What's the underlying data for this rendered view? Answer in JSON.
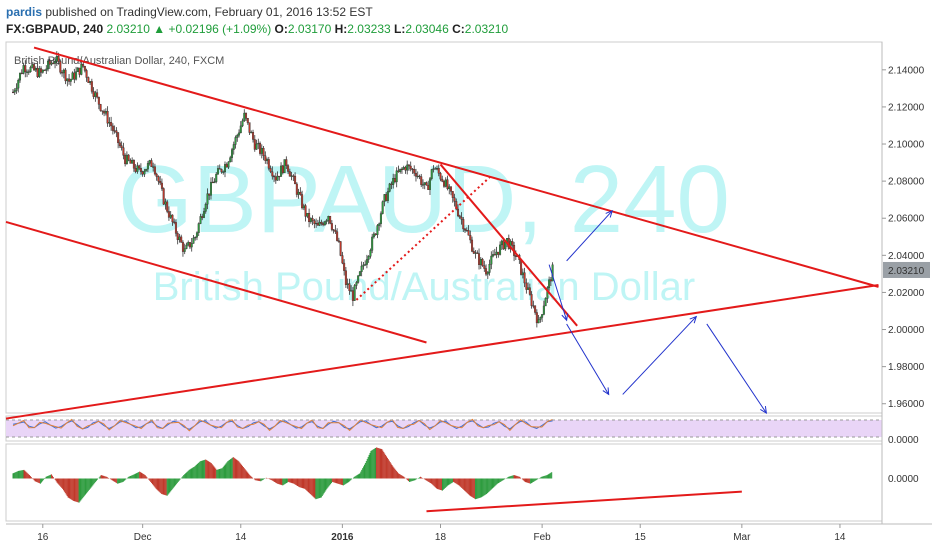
{
  "header": {
    "author": "pardis",
    "published_text": "published on TradingView.com, February 01, 2016 13:52 EST",
    "symbol": "FX:GBPAUD, 240",
    "last": "2.03210",
    "change": "+0.02196 (+1.09%)",
    "o_label": "O:",
    "o_value": "2.03170",
    "h_label": "H:",
    "h_value": "2.03233",
    "l_label": "L:",
    "l_value": "2.03046",
    "c_label": "C:",
    "c_value": "2.03210"
  },
  "colors": {
    "up": "#2e9c3f",
    "down": "#c0392b",
    "trendline": "#e31a1a",
    "projection": "#2233cc",
    "watermark": "#bff5f5",
    "price_tag_bg": "#9aa0a6",
    "osc_band": "#e9d5f7"
  },
  "chart_data": [
    {
      "type": "candlestick",
      "title": "British Pound/Australian Dollar, 240, FXCM",
      "watermark_line1": "GBPAUD, 240",
      "watermark_line2": "British Pound/Australian Dollar",
      "y_ticks": [
        "2.14000",
        "2.12000",
        "2.10000",
        "2.08000",
        "2.06000",
        "2.04000",
        "2.02000",
        "2.00000",
        "1.98000",
        "1.96000"
      ],
      "y_tick_values": [
        2.14,
        2.12,
        2.1,
        2.08,
        2.06,
        2.04,
        2.02,
        2.0,
        1.98,
        1.96
      ],
      "ylim": [
        1.955,
        2.155
      ],
      "last_price_label": "2.03210",
      "last_price": 2.0321,
      "x_ticks": [
        "16",
        "Dec",
        "14",
        "2016",
        "18",
        "Feb",
        "15",
        "Mar",
        "14"
      ],
      "x_tick_values": [
        0.5,
        29,
        57,
        86,
        114,
        143,
        171,
        200,
        228
      ],
      "xlim": [
        -10,
        240
      ],
      "approx_close_path": [
        [
          -8,
          2.128
        ],
        [
          -5,
          2.142
        ],
        [
          0,
          2.138
        ],
        [
          4,
          2.146
        ],
        [
          8,
          2.134
        ],
        [
          12,
          2.142
        ],
        [
          16,
          2.124
        ],
        [
          20,
          2.11
        ],
        [
          24,
          2.092
        ],
        [
          28,
          2.085
        ],
        [
          32,
          2.09
        ],
        [
          35,
          2.07
        ],
        [
          38,
          2.055
        ],
        [
          41,
          2.042
        ],
        [
          44,
          2.05
        ],
        [
          47,
          2.07
        ],
        [
          50,
          2.083
        ],
        [
          53,
          2.09
        ],
        [
          56,
          2.105
        ],
        [
          58,
          2.115
        ],
        [
          61,
          2.1
        ],
        [
          64,
          2.093
        ],
        [
          67,
          2.082
        ],
        [
          70,
          2.09
        ],
        [
          73,
          2.075
        ],
        [
          76,
          2.06
        ],
        [
          79,
          2.055
        ],
        [
          82,
          2.062
        ],
        [
          85,
          2.045
        ],
        [
          87,
          2.025
        ],
        [
          89,
          2.018
        ],
        [
          92,
          2.035
        ],
        [
          95,
          2.05
        ],
        [
          98,
          2.07
        ],
        [
          101,
          2.082
        ],
        [
          104,
          2.088
        ],
        [
          107,
          2.085
        ],
        [
          110,
          2.075
        ],
        [
          112,
          2.088
        ],
        [
          115,
          2.08
        ],
        [
          118,
          2.068
        ],
        [
          121,
          2.055
        ],
        [
          124,
          2.04
        ],
        [
          127,
          2.032
        ],
        [
          130,
          2.042
        ],
        [
          133,
          2.048
        ],
        [
          136,
          2.038
        ],
        [
          139,
          2.02
        ],
        [
          141,
          2.01
        ],
        [
          142,
          2.003
        ],
        [
          144,
          2.018
        ],
        [
          146,
          2.032
        ]
      ],
      "trendlines": [
        {
          "from": [
            -2,
            2.152
          ],
          "to": [
            239,
            2.023
          ]
        },
        {
          "from": [
            -10,
            2.058
          ],
          "to": [
            110,
            1.993
          ]
        },
        {
          "from": [
            -10,
            1.952
          ],
          "to": [
            239,
            2.024
          ]
        },
        {
          "from": [
            114,
            2.089
          ],
          "to": [
            153,
            2.002
          ]
        }
      ],
      "dotted_line": {
        "from": [
          90,
          2.016
        ],
        "to": [
          128,
          2.082
        ]
      },
      "projection_arrows": [
        {
          "from": [
            145,
            2.035
          ],
          "to": [
            150,
            2.005
          ]
        },
        {
          "from": [
            150,
            2.037
          ],
          "to": [
            163,
            2.064
          ]
        },
        {
          "from": [
            150,
            2.003
          ],
          "to": [
            162,
            1.965
          ]
        },
        {
          "from": [
            166,
            1.965
          ],
          "to": [
            187,
            2.007
          ]
        },
        {
          "from": [
            190,
            2.003
          ],
          "to": [
            207,
            1.955
          ]
        }
      ]
    },
    {
      "type": "line",
      "title": "",
      "y_ticks": [
        "0.0000"
      ],
      "ylim": [
        -0.05,
        1.05
      ],
      "series": [
        {
          "values": [
            0.72,
            0.78,
            0.84,
            0.62,
            0.55,
            0.74,
            0.86,
            0.68,
            0.52,
            0.6,
            0.78,
            0.9,
            0.7,
            0.48,
            0.56,
            0.8,
            0.88,
            0.66,
            0.5,
            0.64,
            0.84,
            0.9,
            0.72,
            0.54,
            0.58,
            0.76,
            0.86,
            0.62,
            0.5,
            0.7,
            0.88,
            0.82,
            0.58,
            0.46,
            0.64,
            0.86,
            0.9,
            0.68,
            0.52,
            0.62,
            0.82,
            0.88,
            0.66,
            0.5,
            0.6,
            0.8,
            0.86,
            0.64,
            0.48,
            0.62,
            0.84,
            0.9,
            0.7,
            0.52,
            0.58,
            0.78,
            0.86,
            0.62,
            0.5,
            0.72,
            0.88,
            0.8,
            0.56,
            0.48,
            0.66,
            0.86,
            0.9,
            0.7,
            0.54,
            0.62,
            0.82,
            0.88,
            0.64,
            0.5,
            0.6,
            0.8,
            0.92,
            0.68,
            0.52,
            0.64,
            0.84,
            0.88,
            0.66,
            0.5,
            0.62,
            0.82,
            0.9,
            0.72,
            0.54,
            0.58,
            0.78,
            0.86,
            0.62,
            0.48,
            0.7,
            0.88,
            0.84,
            0.6,
            0.5,
            0.66,
            0.86,
            0.9
          ]
        }
      ]
    },
    {
      "type": "bar",
      "title": "",
      "y_ticks": [
        "0.0000"
      ],
      "ylim": [
        -1,
        1
      ],
      "series": [
        {
          "values": [
            0.15,
            0.22,
            0.25,
            0.1,
            -0.08,
            -0.15,
            0.05,
            0.12,
            -0.12,
            -0.3,
            -0.55,
            -0.65,
            -0.7,
            -0.5,
            -0.3,
            -0.1,
            0.1,
            0.05,
            -0.05,
            -0.15,
            -0.1,
            0.05,
            0.12,
            0.2,
            0.1,
            -0.1,
            -0.3,
            -0.45,
            -0.5,
            -0.3,
            -0.1,
            0.1,
            0.25,
            0.35,
            0.5,
            0.55,
            0.45,
            0.25,
            0.3,
            0.5,
            0.62,
            0.5,
            0.3,
            0.1,
            -0.05,
            -0.08,
            0.02,
            -0.05,
            -0.15,
            -0.2,
            -0.1,
            -0.15,
            -0.25,
            -0.3,
            -0.45,
            -0.6,
            -0.55,
            -0.3,
            -0.1,
            -0.15,
            -0.2,
            -0.1,
            0.05,
            0.15,
            0.45,
            0.8,
            0.9,
            0.85,
            0.6,
            0.35,
            0.15,
            0.05,
            -0.1,
            -0.05,
            0.05,
            -0.05,
            -0.15,
            -0.3,
            -0.35,
            -0.2,
            -0.1,
            -0.2,
            -0.35,
            -0.5,
            -0.6,
            -0.55,
            -0.45,
            -0.3,
            -0.15,
            -0.05,
            0.05,
            0.1,
            0.05,
            -0.1,
            -0.15,
            -0.05,
            0.05,
            0.1,
            0.2
          ]
        }
      ],
      "trendline": {
        "from": [
          110,
          -0.95
        ],
        "to": [
          200,
          -0.38
        ]
      }
    }
  ]
}
